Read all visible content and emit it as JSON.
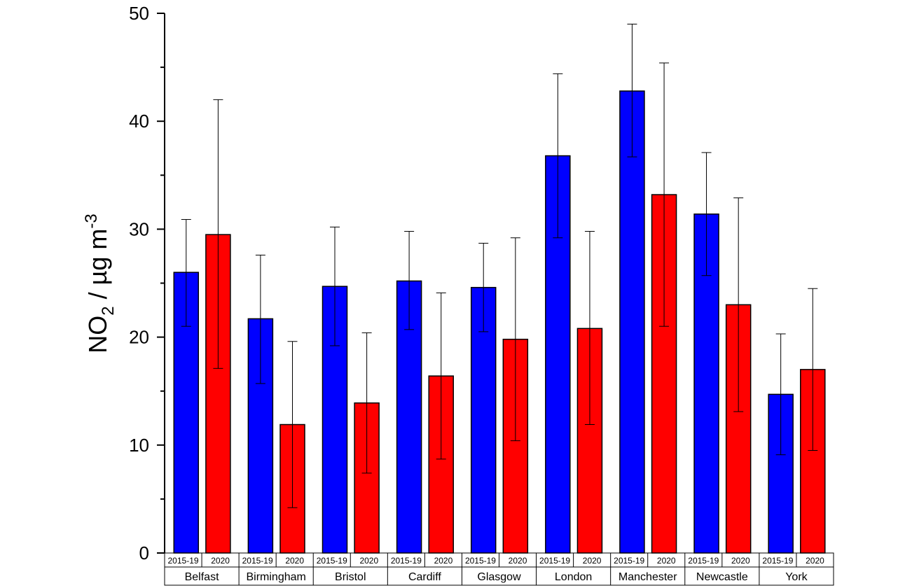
{
  "chart_data": {
    "type": "bar",
    "title": "",
    "ylabel": "NO2 / µg m-3",
    "ylabel_parts": {
      "main": "NO",
      "sub": "2",
      "mid": " / µg m",
      "sup": "-3"
    },
    "ylim": [
      0,
      50
    ],
    "yticks": [
      "0",
      "10",
      "20",
      "30",
      "40",
      "50"
    ],
    "categories": [
      "Belfast",
      "Birmingham",
      "Bristol",
      "Cardiff",
      "Glasgow",
      "London",
      "Manchester",
      "Newcastle",
      "York"
    ],
    "series": [
      {
        "name": "2015-19",
        "color": "#0000ff",
        "values": [
          26.0,
          21.7,
          24.7,
          25.2,
          24.6,
          36.8,
          42.8,
          31.4,
          14.7
        ],
        "err_low": [
          21.0,
          15.7,
          19.2,
          20.7,
          20.5,
          29.2,
          36.7,
          25.7,
          9.1
        ],
        "err_high": [
          30.9,
          27.6,
          30.2,
          29.8,
          28.7,
          44.4,
          49.0,
          37.1,
          20.3
        ]
      },
      {
        "name": "2020",
        "color": "#ff0000",
        "values": [
          29.5,
          11.9,
          13.9,
          16.4,
          19.8,
          20.8,
          33.2,
          23.0,
          17.0
        ],
        "err_low": [
          17.1,
          4.2,
          7.4,
          8.7,
          10.4,
          11.9,
          21.0,
          13.1,
          9.5
        ],
        "err_high": [
          42.0,
          19.6,
          20.4,
          24.1,
          29.2,
          29.8,
          45.4,
          32.9,
          24.5
        ]
      }
    ],
    "grid": false,
    "legend": "none"
  }
}
